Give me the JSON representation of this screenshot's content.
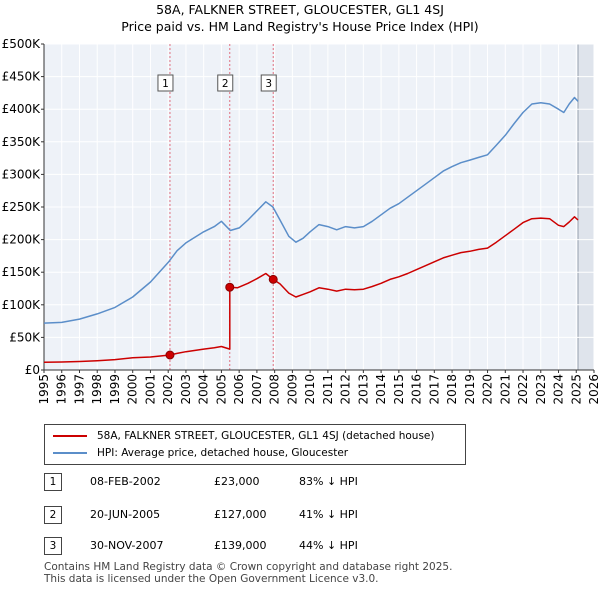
{
  "chart_data": {
    "type": "line",
    "title": "58A, FALKNER STREET, GLOUCESTER, GL1 4SJ",
    "subtitle": "Price paid vs. HM Land Registry's House Price Index (HPI)",
    "xlim": [
      1995,
      2026
    ],
    "ylim": [
      0,
      500000
    ],
    "x_ticks": [
      "1995",
      "1996",
      "1997",
      "1998",
      "1999",
      "2000",
      "2001",
      "2002",
      "2003",
      "2004",
      "2005",
      "2006",
      "2007",
      "2008",
      "2009",
      "2010",
      "2011",
      "2012",
      "2013",
      "2014",
      "2015",
      "2016",
      "2017",
      "2018",
      "2019",
      "2020",
      "2021",
      "2022",
      "2023",
      "2024",
      "2025",
      "2026"
    ],
    "y_ticks": [
      {
        "value": 0,
        "label": "£0"
      },
      {
        "value": 50000,
        "label": "£50K"
      },
      {
        "value": 100000,
        "label": "£100K"
      },
      {
        "value": 150000,
        "label": "£150K"
      },
      {
        "value": 200000,
        "label": "£200K"
      },
      {
        "value": 250000,
        "label": "£250K"
      },
      {
        "value": 300000,
        "label": "£300K"
      },
      {
        "value": 350000,
        "label": "£350K"
      },
      {
        "value": 400000,
        "label": "£400K"
      },
      {
        "value": 450000,
        "label": "£450K"
      },
      {
        "value": 500000,
        "label": "£500K"
      }
    ],
    "series": [
      {
        "name": "HPI: Average price, detached house, Gloucester",
        "color": "#5b8ec9",
        "x": [
          1995.0,
          1996.0,
          1997.0,
          1998.0,
          1999.0,
          2000.0,
          2001.0,
          2002.0,
          2002.5,
          2003.0,
          2004.0,
          2004.6,
          2005.0,
          2005.5,
          2006.0,
          2006.5,
          2007.0,
          2007.5,
          2007.9,
          2008.3,
          2008.8,
          2009.2,
          2009.6,
          2010.0,
          2010.5,
          2011.0,
          2011.5,
          2012.0,
          2012.5,
          2013.0,
          2013.5,
          2014.0,
          2014.5,
          2015.0,
          2015.5,
          2016.0,
          2016.5,
          2017.0,
          2017.5,
          2018.0,
          2018.5,
          2019.0,
          2019.5,
          2020.0,
          2020.5,
          2021.0,
          2021.5,
          2022.0,
          2022.5,
          2023.0,
          2023.5,
          2024.0,
          2024.3,
          2024.6,
          2024.9,
          2025.1
        ],
        "values": [
          72000,
          73000,
          78000,
          86000,
          96000,
          112000,
          135000,
          165000,
          183000,
          195000,
          212000,
          220000,
          228000,
          214000,
          218000,
          230000,
          244000,
          258000,
          250000,
          230000,
          205000,
          196000,
          202000,
          212000,
          223000,
          220000,
          215000,
          220000,
          218000,
          220000,
          228000,
          238000,
          248000,
          255000,
          265000,
          275000,
          285000,
          295000,
          305000,
          312000,
          318000,
          322000,
          326000,
          330000,
          345000,
          360000,
          378000,
          395000,
          408000,
          410000,
          408000,
          400000,
          395000,
          408000,
          418000,
          412000
        ]
      },
      {
        "name": "58A, FALKNER STREET, GLOUCESTER, GL1 4SJ (detached house)",
        "color": "#cc0000",
        "x": [
          1995.0,
          1996.0,
          1997.0,
          1998.0,
          1999.0,
          2000.0,
          2001.0,
          2002.1,
          2002.5,
          2003.0,
          2004.0,
          2004.6,
          2005.0,
          2005.47,
          2005.47,
          2005.9,
          2006.5,
          2007.0,
          2007.5,
          2007.92,
          2008.3,
          2008.8,
          2009.2,
          2009.6,
          2010.0,
          2010.5,
          2011.0,
          2011.5,
          2012.0,
          2012.5,
          2013.0,
          2013.5,
          2014.0,
          2014.5,
          2015.0,
          2015.5,
          2016.0,
          2016.5,
          2017.0,
          2017.5,
          2018.0,
          2018.5,
          2019.0,
          2019.5,
          2020.0,
          2020.5,
          2021.0,
          2021.5,
          2022.0,
          2022.5,
          2023.0,
          2023.5,
          2024.0,
          2024.3,
          2024.6,
          2024.9,
          2025.1
        ],
        "values": [
          12000,
          12200,
          13000,
          14300,
          16000,
          18700,
          20000,
          23000,
          25500,
          28000,
          32000,
          34000,
          36000,
          32000,
          127000,
          126000,
          133000,
          140000,
          148000,
          139000,
          132000,
          118000,
          112000,
          116000,
          120000,
          126000,
          124000,
          121000,
          124000,
          123000,
          124000,
          128000,
          133000,
          139000,
          143000,
          148000,
          154000,
          160000,
          166000,
          172000,
          176000,
          180000,
          182000,
          185000,
          187000,
          196000,
          206000,
          216000,
          226000,
          232000,
          233000,
          232000,
          222000,
          220000,
          227000,
          235000,
          230000
        ]
      }
    ],
    "sale_points": [
      {
        "label": "1",
        "x": 2002.1,
        "value": 23000
      },
      {
        "label": "2",
        "x": 2005.47,
        "value": 127000
      },
      {
        "label": "3",
        "x": 2007.92,
        "value": 139000
      }
    ],
    "legend": [
      {
        "label": "58A, FALKNER STREET, GLOUCESTER, GL1 4SJ (detached house)",
        "color": "#cc0000"
      },
      {
        "label": "HPI: Average price, detached house, Gloucester",
        "color": "#5b8ec9"
      }
    ],
    "sales_table": [
      {
        "num": "1",
        "date": "08-FEB-2002",
        "price": "£23,000",
        "hpi": "83% ↓ HPI"
      },
      {
        "num": "2",
        "date": "20-JUN-2005",
        "price": "£127,000",
        "hpi": "41% ↓ HPI"
      },
      {
        "num": "3",
        "date": "30-NOV-2007",
        "price": "£139,000",
        "hpi": "44% ↓ HPI"
      }
    ],
    "footer_line1": "Contains HM Land Registry data © Crown copyright and database right 2025.",
    "footer_line2": "This data is licensed under the Open Government Licence v3.0."
  }
}
